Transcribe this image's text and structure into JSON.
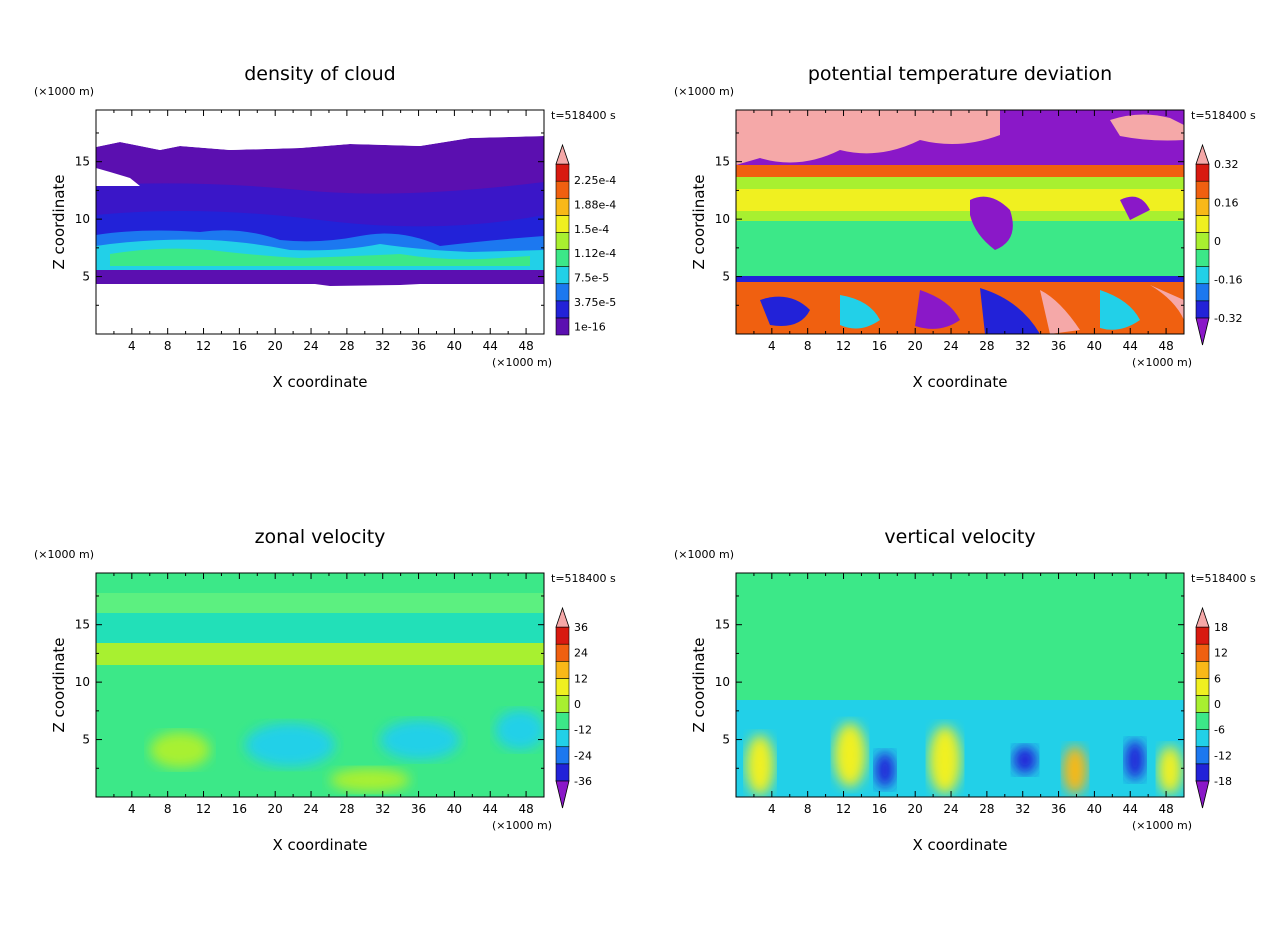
{
  "chart_data": [
    {
      "type": "heatmap",
      "title": "density of cloud",
      "xlabel": "X coordinate",
      "ylabel": "Z coordinate",
      "x_unit": "(×1000 m)",
      "y_unit": "(×1000 m)",
      "time_label": "t=518400 s",
      "xlim": [
        0,
        50
      ],
      "ylim": [
        0,
        19.5
      ],
      "xticks": [
        "4",
        "8",
        "12",
        "16",
        "20",
        "24",
        "28",
        "32",
        "36",
        "40",
        "44",
        "48"
      ],
      "yticks": [
        "5",
        "10",
        "15"
      ],
      "colorbar_labels": [
        "1e-16",
        "3.75e-5",
        "7.5e-5",
        "1.12e-4",
        "1.5e-4",
        "1.88e-4",
        "2.25e-4"
      ],
      "colorbar_colors": [
        "#5b0fb0",
        "#2222d8",
        "#1c78f0",
        "#22d0e8",
        "#3ce888",
        "#a8f030",
        "#f0f020",
        "#f8b818",
        "#f06010",
        "#d81a10",
        "#f5a8a8"
      ],
      "colorbar_extend": "top",
      "field_note": "cloud layer between about Z=5 and Z=17, densest near Z=6-8"
    },
    {
      "type": "heatmap",
      "title": "potential temperature deviation",
      "xlabel": "X coordinate",
      "ylabel": "Z coordinate",
      "x_unit": "(×1000 m)",
      "y_unit": "(×1000 m)",
      "time_label": "t=518400 s",
      "xlim": [
        0,
        50
      ],
      "ylim": [
        0,
        19.5
      ],
      "xticks": [
        "4",
        "8",
        "12",
        "16",
        "20",
        "24",
        "28",
        "32",
        "36",
        "40",
        "44",
        "48"
      ],
      "yticks": [
        "5",
        "10",
        "15"
      ],
      "colorbar_labels": [
        "-0.32",
        "-0.16",
        "0",
        "0.16",
        "0.32"
      ],
      "colorbar_colors": [
        "#8a18c8",
        "#2222d8",
        "#1c78f0",
        "#22d0e8",
        "#3ce888",
        "#a8f030",
        "#f0f020",
        "#f8b818",
        "#f06010",
        "#d81a10",
        "#f5a8a8"
      ],
      "colorbar_extend": "both"
    },
    {
      "type": "heatmap",
      "title": "zonal velocity",
      "xlabel": "X coordinate",
      "ylabel": "Z coordinate",
      "x_unit": "(×1000 m)",
      "y_unit": "(×1000 m)",
      "time_label": "t=518400 s",
      "xlim": [
        0,
        50
      ],
      "ylim": [
        0,
        19.5
      ],
      "xticks": [
        "4",
        "8",
        "12",
        "16",
        "20",
        "24",
        "28",
        "32",
        "36",
        "40",
        "44",
        "48"
      ],
      "yticks": [
        "5",
        "10",
        "15"
      ],
      "colorbar_labels": [
        "-36",
        "-24",
        "-12",
        "0",
        "12",
        "24",
        "36"
      ],
      "colorbar_colors": [
        "#8a18c8",
        "#2222d8",
        "#1c78f0",
        "#22d0e8",
        "#3ce888",
        "#a8f030",
        "#f0f020",
        "#f8b818",
        "#f06010",
        "#d81a10",
        "#f5a8a8"
      ],
      "colorbar_extend": "both"
    },
    {
      "type": "heatmap",
      "title": "vertical velocity",
      "xlabel": "X coordinate",
      "ylabel": "Z coordinate",
      "x_unit": "(×1000 m)",
      "y_unit": "(×1000 m)",
      "time_label": "t=518400 s",
      "xlim": [
        0,
        50
      ],
      "ylim": [
        0,
        19.5
      ],
      "xticks": [
        "4",
        "8",
        "12",
        "16",
        "20",
        "24",
        "28",
        "32",
        "36",
        "40",
        "44",
        "48"
      ],
      "yticks": [
        "5",
        "10",
        "15"
      ],
      "colorbar_labels": [
        "-18",
        "-12",
        "-6",
        "0",
        "6",
        "12",
        "18"
      ],
      "colorbar_colors": [
        "#8a18c8",
        "#2222d8",
        "#1c78f0",
        "#22d0e8",
        "#3ce888",
        "#a8f030",
        "#f0f020",
        "#f8b818",
        "#f06010",
        "#d81a10",
        "#f5a8a8"
      ],
      "colorbar_extend": "both"
    }
  ]
}
